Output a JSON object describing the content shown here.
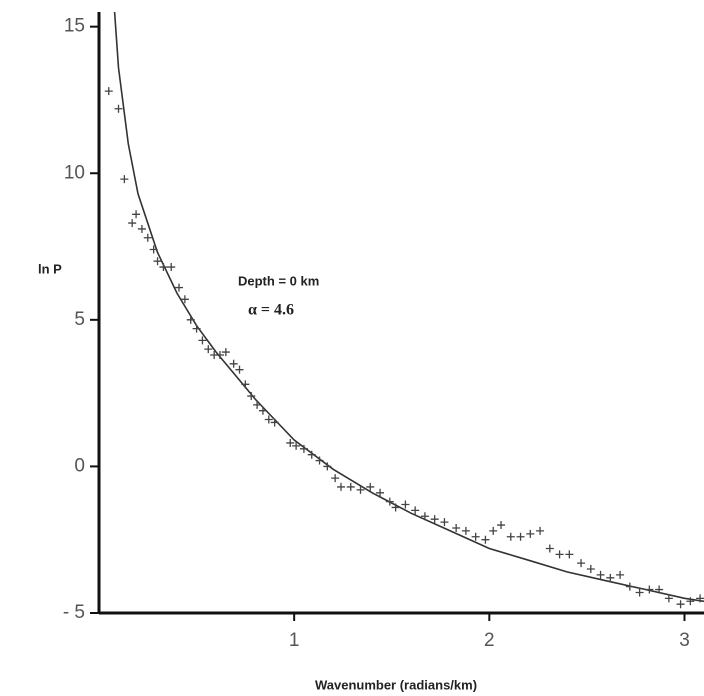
{
  "chart_data": {
    "type": "scatter",
    "xlabel": "Wavenumber (radians/km)",
    "ylabel": "ln P",
    "annotations": [
      "Depth = 0 km",
      "α = 4.6"
    ],
    "xlim": [
      0,
      3.1
    ],
    "ylim": [
      -5,
      15.5
    ],
    "xticks": [
      1,
      2,
      3
    ],
    "yticks": [
      {
        "value": -5,
        "label": "- 5"
      },
      0,
      5,
      10,
      15
    ],
    "color": "#444444",
    "points": {
      "x": [
        0.05,
        0.1,
        0.13,
        0.17,
        0.19,
        0.22,
        0.25,
        0.28,
        0.3,
        0.33,
        0.37,
        0.41,
        0.44,
        0.47,
        0.5,
        0.53,
        0.56,
        0.59,
        0.62,
        0.65,
        0.69,
        0.72,
        0.75,
        0.78,
        0.81,
        0.84,
        0.87,
        0.9,
        0.98,
        1.01,
        1.05,
        1.09,
        1.13,
        1.17,
        1.21,
        1.24,
        1.29,
        1.34,
        1.39,
        1.44,
        1.49,
        1.52,
        1.57,
        1.62,
        1.67,
        1.72,
        1.77,
        1.83,
        1.88,
        1.93,
        1.98,
        2.02,
        2.06,
        2.11,
        2.16,
        2.21,
        2.26,
        2.31,
        2.36,
        2.41,
        2.47,
        2.52,
        2.57,
        2.62,
        2.67,
        2.72,
        2.77,
        2.82,
        2.87,
        2.92,
        2.98,
        3.03,
        3.08
      ],
      "values": [
        12.8,
        12.2,
        9.8,
        8.3,
        8.6,
        8.1,
        7.8,
        7.4,
        7.0,
        6.8,
        6.8,
        6.1,
        5.7,
        5.0,
        4.7,
        4.3,
        4.0,
        3.8,
        3.8,
        3.9,
        3.5,
        3.3,
        2.8,
        2.4,
        2.1,
        1.9,
        1.6,
        1.5,
        0.8,
        0.7,
        0.6,
        0.4,
        0.2,
        0.0,
        -0.4,
        -0.7,
        -0.7,
        -0.8,
        -0.7,
        -0.9,
        -1.2,
        -1.4,
        -1.3,
        -1.5,
        -1.7,
        -1.8,
        -1.9,
        -2.1,
        -2.2,
        -2.4,
        -2.5,
        -2.2,
        -2.0,
        -2.4,
        -2.4,
        -2.3,
        -2.2,
        -2.8,
        -3.0,
        -3.0,
        -3.3,
        -3.5,
        -3.7,
        -3.8,
        -3.7,
        -4.1,
        -4.3,
        -4.2,
        -4.2,
        -4.5,
        -4.7,
        -4.6,
        -4.5
      ]
    },
    "curve": {
      "color": "#333333",
      "x": [
        0.08,
        0.1,
        0.15,
        0.2,
        0.3,
        0.4,
        0.5,
        0.6,
        0.7,
        0.8,
        0.9,
        1.0,
        1.2,
        1.4,
        1.6,
        1.8,
        2.0,
        2.2,
        2.4,
        2.6,
        2.8,
        3.0,
        3.1
      ],
      "values": [
        15.5,
        13.6,
        11.0,
        9.3,
        7.3,
        5.9,
        4.8,
        3.9,
        3.1,
        2.3,
        1.6,
        0.9,
        -0.1,
        -0.9,
        -1.6,
        -2.2,
        -2.8,
        -3.2,
        -3.6,
        -3.9,
        -4.2,
        -4.5,
        -4.6
      ]
    }
  }
}
